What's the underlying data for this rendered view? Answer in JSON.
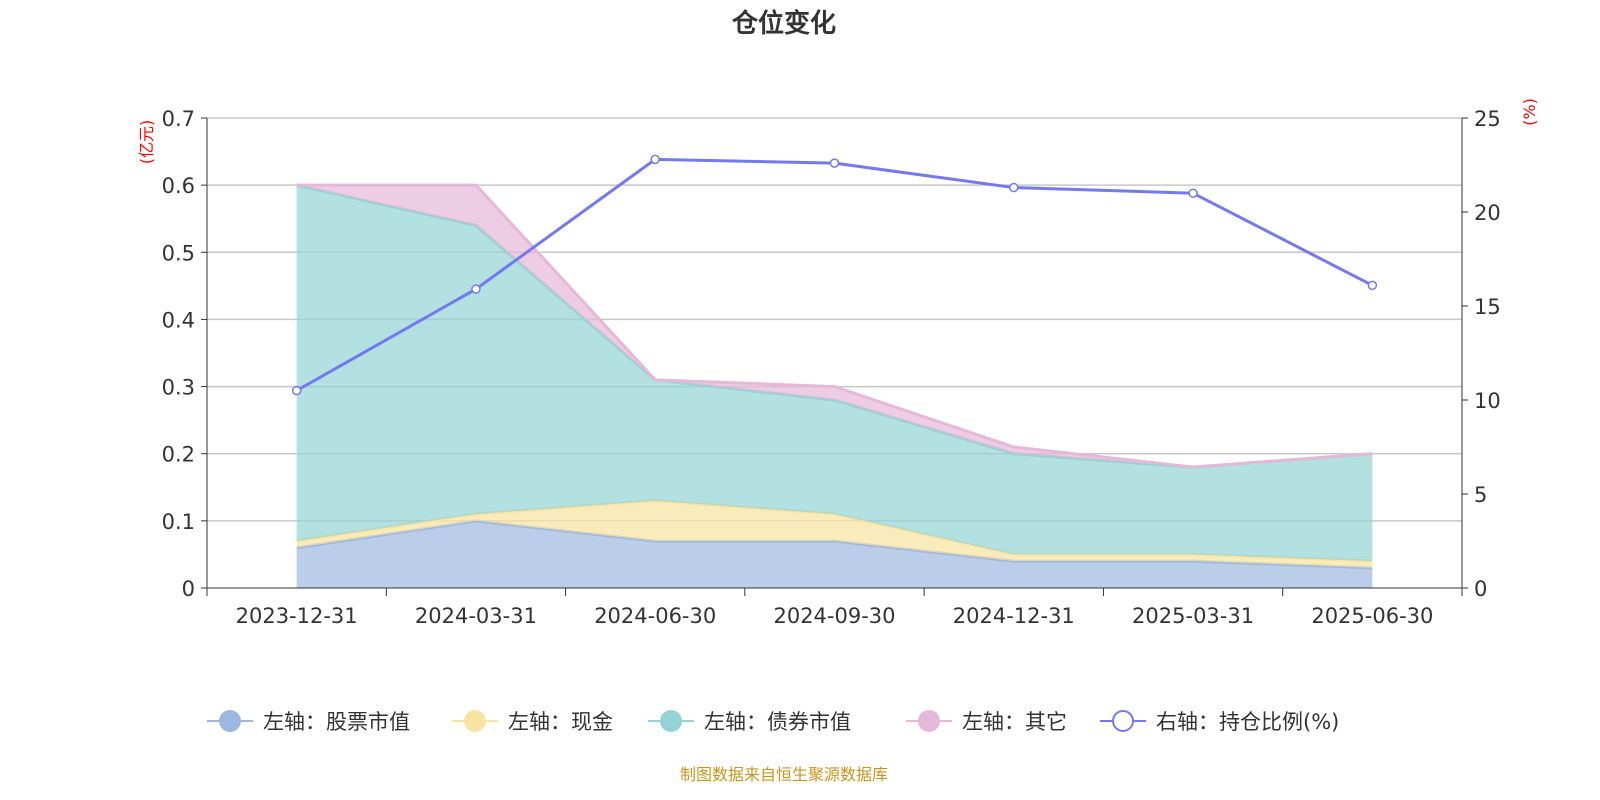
{
  "chart_data": {
    "type": "area",
    "title": "仓位变化",
    "left_axis_unit": "(亿元)",
    "right_axis_unit": "(%)",
    "categories": [
      "2023-12-31",
      "2024-03-31",
      "2024-06-30",
      "2024-09-30",
      "2024-12-31",
      "2025-03-31",
      "2025-06-30"
    ],
    "left_ylim": [
      0,
      0.7
    ],
    "left_ticks": [
      "0",
      "0.1",
      "0.2",
      "0.3",
      "0.4",
      "0.5",
      "0.6",
      "0.7"
    ],
    "right_ylim": [
      0,
      25
    ],
    "right_ticks": [
      "0",
      "5",
      "10",
      "15",
      "20",
      "25"
    ],
    "stacked": true,
    "grid": true,
    "legend_placement": "bottom",
    "series": [
      {
        "name": "左轴：股票市值",
        "axis": "left",
        "color": "#9db8e0",
        "values": [
          0.06,
          0.1,
          0.07,
          0.07,
          0.04,
          0.04,
          0.03
        ]
      },
      {
        "name": "左轴：现金",
        "axis": "left",
        "color": "#f8e3a0",
        "values": [
          0.01,
          0.01,
          0.06,
          0.04,
          0.01,
          0.01,
          0.01
        ]
      },
      {
        "name": "左轴：债券市值",
        "axis": "left",
        "color": "#93d3d3",
        "values": [
          0.53,
          0.43,
          0.18,
          0.17,
          0.15,
          0.13,
          0.16
        ]
      },
      {
        "name": "左轴：其它",
        "axis": "left",
        "color": "#e6b8d8",
        "values": [
          0.0,
          0.06,
          0.0,
          0.02,
          0.01,
          0.0,
          0.0
        ]
      },
      {
        "name": "右轴：持仓比例(%)",
        "axis": "right",
        "type": "line",
        "color": "#7479f0",
        "values": [
          10.5,
          15.9,
          22.8,
          22.6,
          21.3,
          21.0,
          16.1
        ]
      }
    ],
    "source_note": "制图数据来自恒生聚源数据库"
  }
}
